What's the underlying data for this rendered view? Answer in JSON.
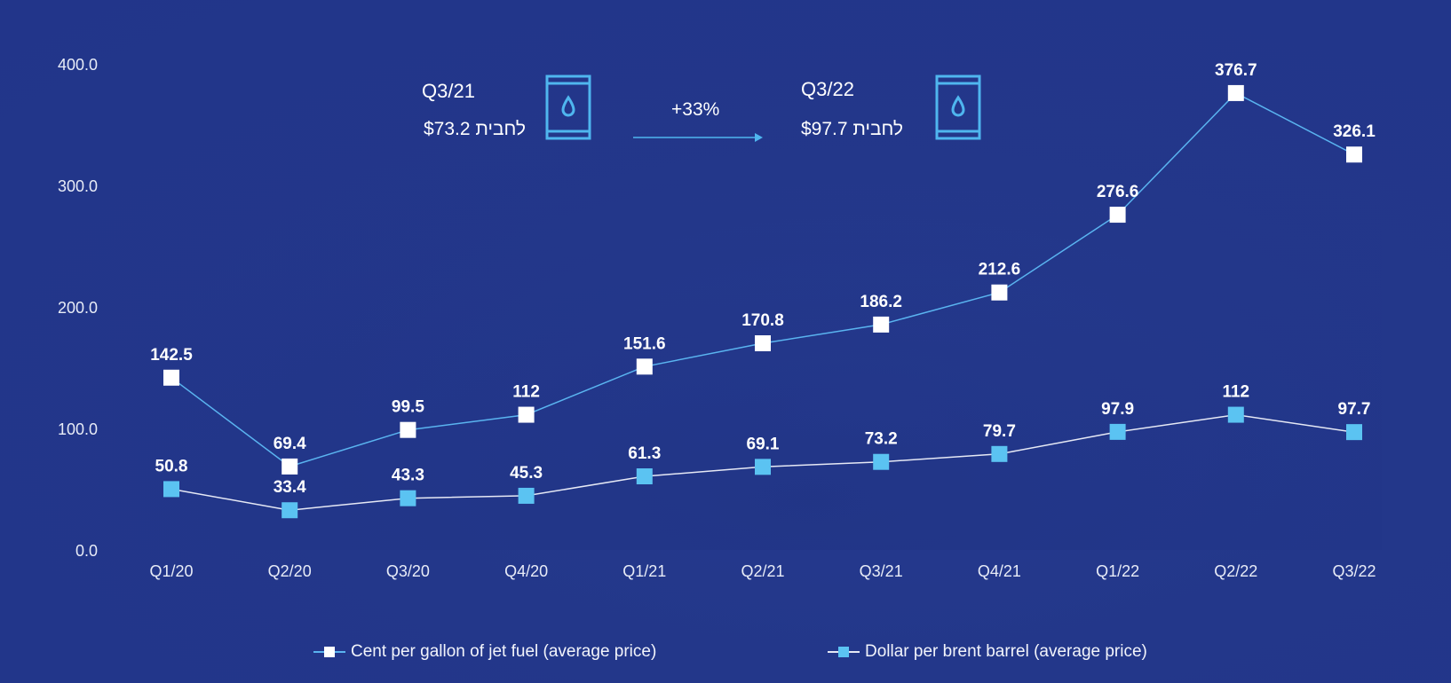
{
  "colors": {
    "background": "#23378a",
    "jet_fuel_series": "#ffffff",
    "jet_fuel_line": "#5ab4f0",
    "brent_series": "#5bc3f2",
    "brent_line": "#e6e9f5",
    "accent": "#4fb6ef"
  },
  "callouts": {
    "left": {
      "quarter": "Q3/21",
      "price": "$73.2",
      "unit": "לחבית",
      "icon": "oil-barrel-icon"
    },
    "change": "+33%",
    "right": {
      "quarter": "Q3/22",
      "price": "$97.7",
      "unit": "לחבית",
      "icon": "oil-barrel-icon"
    }
  },
  "chart_data": {
    "type": "line",
    "categories": [
      "Q1/20",
      "Q2/20",
      "Q3/20",
      "Q4/20",
      "Q1/21",
      "Q2/21",
      "Q3/21",
      "Q4/21",
      "Q1/22",
      "Q2/22",
      "Q3/22"
    ],
    "ylim": [
      0,
      400
    ],
    "yticks": [
      "0.0",
      "100.0",
      "200.0",
      "300.0",
      "400.0"
    ],
    "ytick_values": [
      0,
      100,
      200,
      300,
      400
    ],
    "grid": false,
    "legend_position": "bottom",
    "series": [
      {
        "name": "Cent per gallon of jet fuel (average price)",
        "values": [
          142.5,
          69.4,
          99.5,
          112,
          151.6,
          170.8,
          186.2,
          212.6,
          276.6,
          376.7,
          326.1
        ],
        "labels": [
          "142.5",
          "69.4",
          "99.5",
          "112",
          "151.6",
          "170.8",
          "186.2",
          "212.6",
          "276.6",
          "376.7",
          "326.1"
        ]
      },
      {
        "name": "Dollar per brent barrel (average price)",
        "values": [
          50.8,
          33.4,
          43.3,
          45.3,
          61.3,
          69.1,
          73.2,
          79.7,
          97.9,
          112,
          97.7
        ],
        "labels": [
          "50.8",
          "33.4",
          "43.3",
          "45.3",
          "61.3",
          "69.1",
          "73.2",
          "79.7",
          "97.9",
          "112",
          "97.7"
        ]
      }
    ]
  }
}
